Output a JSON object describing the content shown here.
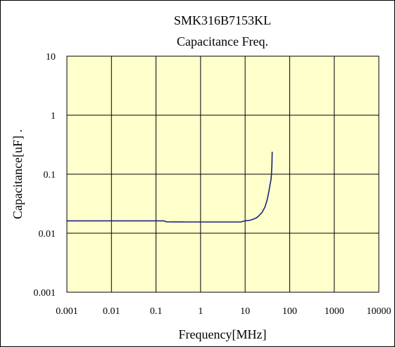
{
  "chart_data": {
    "type": "line",
    "title": "SMK316B7153KL",
    "subtitle": "Capacitance Freq.",
    "xlabel": "Frequency[MHz]",
    "ylabel": "Capacitance[uF] .",
    "x_scale": "log",
    "y_scale": "log",
    "xlim": [
      0.001,
      10000
    ],
    "ylim": [
      0.001,
      10
    ],
    "x_ticks": [
      0.001,
      0.01,
      0.1,
      1,
      10,
      100,
      1000,
      10000
    ],
    "x_tick_labels": [
      "0.001",
      "0.01",
      "0.1",
      "1",
      "10",
      "100",
      "1000",
      "10000"
    ],
    "y_ticks": [
      0.001,
      0.01,
      0.1,
      1,
      10
    ],
    "y_tick_labels": [
      "0.001",
      "0.01",
      "0.1",
      "1",
      "10"
    ],
    "grid": true,
    "legend": "none",
    "colors": {
      "plot_background": "#ffffcc",
      "line": "#1a237e",
      "grid": "#000000"
    },
    "series": [
      {
        "x": [
          0.001,
          0.01,
          0.1,
          0.15,
          0.17,
          0.5,
          1,
          3,
          8,
          10,
          13,
          15,
          18,
          20,
          24,
          28,
          31,
          34,
          36,
          38,
          39,
          40,
          40.5
        ],
        "y": [
          0.0162,
          0.0162,
          0.0162,
          0.0162,
          0.0156,
          0.0155,
          0.0155,
          0.0155,
          0.0155,
          0.0162,
          0.0166,
          0.0172,
          0.0182,
          0.0195,
          0.0225,
          0.028,
          0.036,
          0.05,
          0.065,
          0.08,
          0.1,
          0.15,
          0.24
        ]
      }
    ]
  }
}
